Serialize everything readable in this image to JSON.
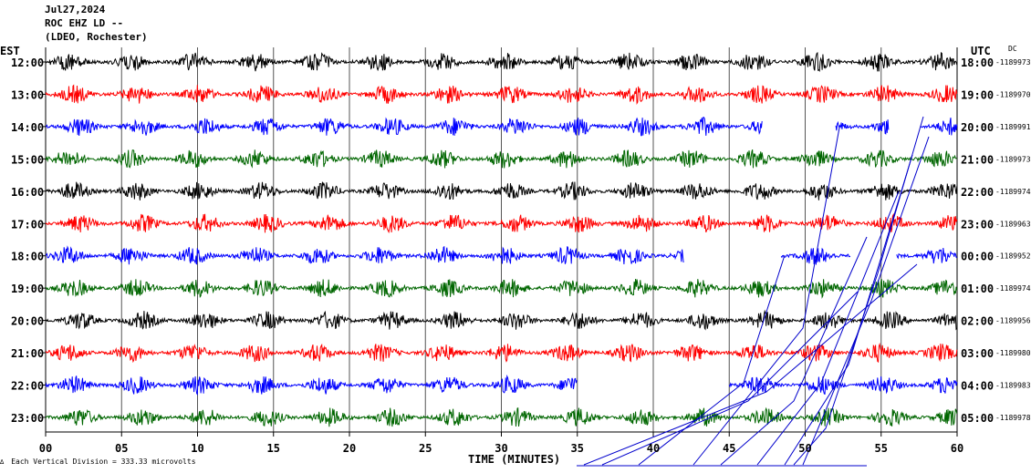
{
  "header": {
    "date": "Jul27,2024",
    "station": "ROC EHZ LD --",
    "network": "(LDEO, Rochester)"
  },
  "left_label": "EST",
  "right_label": "UTC",
  "dc_label": "DC",
  "footer": {
    "symbol": "∆",
    "note": "Each Vertical Division =  333.33 microvolts"
  },
  "colors": {
    "cycle": [
      "#000000",
      "#ff0000",
      "#0000ff",
      "#006600"
    ],
    "grid": "#000000"
  },
  "chart_data": {
    "type": "line",
    "title": "",
    "xlabel": "TIME (MINUTES)",
    "xlim": [
      0,
      60
    ],
    "xticks": [
      "00",
      "05",
      "10",
      "15",
      "20",
      "25",
      "30",
      "35",
      "40",
      "45",
      "50",
      "55",
      "60"
    ],
    "grid": true,
    "rows": [
      {
        "est": "12:00",
        "utc": "18:00",
        "dc": "-1189973",
        "color": "#000000"
      },
      {
        "est": "13:00",
        "utc": "19:00",
        "dc": "-1189970",
        "color": "#ff0000"
      },
      {
        "est": "14:00",
        "utc": "20:00",
        "dc": "-1189991",
        "color": "#0000ff",
        "gaps": [
          [
            47.2,
            52.0
          ],
          [
            55.5,
            57.6
          ]
        ]
      },
      {
        "est": "15:00",
        "utc": "21:00",
        "dc": "-1189973",
        "color": "#006600"
      },
      {
        "est": "16:00",
        "utc": "22:00",
        "dc": "-1189974",
        "color": "#000000"
      },
      {
        "est": "17:00",
        "utc": "23:00",
        "dc": "-1189963",
        "color": "#ff0000"
      },
      {
        "est": "18:00",
        "utc": "00:00",
        "dc": "-1189952",
        "color": "#0000ff",
        "gaps": [
          [
            42.0,
            48.4
          ],
          [
            53.0,
            56.0
          ]
        ]
      },
      {
        "est": "19:00",
        "utc": "01:00",
        "dc": "-1189974",
        "color": "#006600"
      },
      {
        "est": "20:00",
        "utc": "02:00",
        "dc": "-1189956",
        "color": "#000000"
      },
      {
        "est": "21:00",
        "utc": "03:00",
        "dc": "-1189980",
        "color": "#ff0000"
      },
      {
        "est": "22:00",
        "utc": "04:00",
        "dc": "-1189983",
        "color": "#0000ff",
        "gaps": [
          [
            35.0,
            45.0
          ]
        ]
      },
      {
        "est": "23:00",
        "utc": "05:00",
        "dc": "-1189978",
        "color": "#006600"
      }
    ]
  }
}
